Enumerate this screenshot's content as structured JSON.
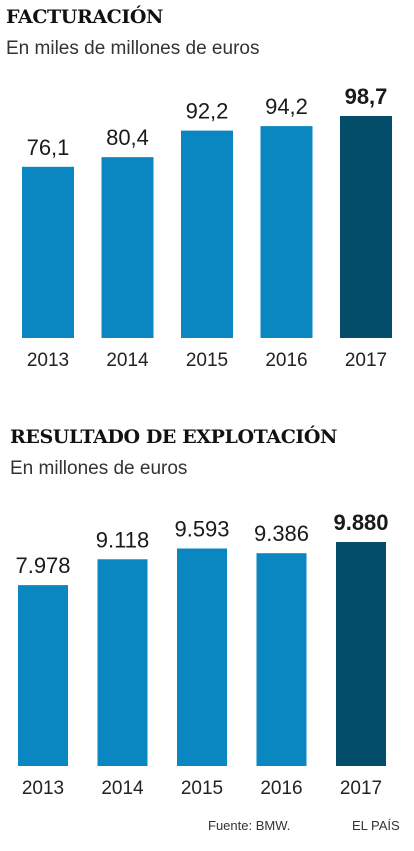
{
  "chart_data": [
    {
      "type": "bar",
      "title": "FACTURACIÓN",
      "subtitle": "En miles de millones de euros",
      "categories": [
        "2013",
        "2014",
        "2015",
        "2016",
        "2017"
      ],
      "values": [
        76.1,
        80.4,
        92.2,
        94.2,
        98.7
      ],
      "value_labels": [
        "76,1",
        "80,4",
        "92,2",
        "94,2",
        "98,7"
      ],
      "highlight_index": 4,
      "ylim": [
        0,
        98.7
      ],
      "grid": false,
      "colors": {
        "bar": "#0a86c0",
        "highlight": "#034d6b"
      }
    },
    {
      "type": "bar",
      "title": "RESULTADO DE EXPLOTACIÓN",
      "subtitle": "En millones de euros",
      "categories": [
        "2013",
        "2014",
        "2015",
        "2016",
        "2017"
      ],
      "values": [
        7978,
        9118,
        9593,
        9386,
        9880
      ],
      "value_labels": [
        "7.978",
        "9.118",
        "9.593",
        "9.386",
        "9.880"
      ],
      "highlight_index": 4,
      "ylim": [
        0,
        9880
      ],
      "grid": false,
      "colors": {
        "bar": "#0a86c0",
        "highlight": "#034d6b"
      }
    }
  ],
  "footer": {
    "source": "Fuente: BMW.",
    "credit": "EL PAÍS"
  }
}
